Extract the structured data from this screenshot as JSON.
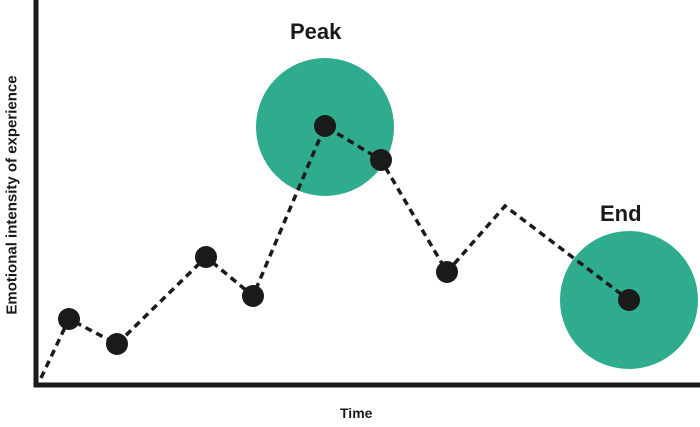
{
  "axes": {
    "ylabel": "Emotional intensity of experience",
    "xlabel": "Time"
  },
  "callouts": {
    "peak": "Peak",
    "end": "End"
  },
  "colors": {
    "highlight": "#2fac8e",
    "line": "#1a1a1a",
    "axis": "#1a1a1a"
  }
}
